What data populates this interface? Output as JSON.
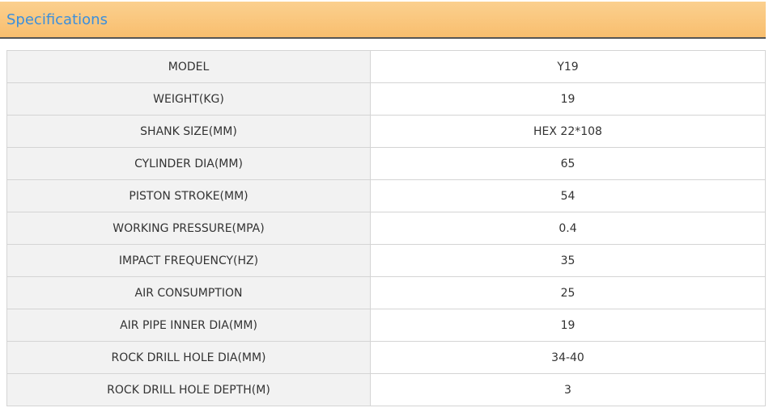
{
  "header": {
    "title": "Specifications"
  },
  "table": {
    "rows": [
      [
        "MODEL",
        "Y19"
      ],
      [
        "WEIGHT(KG)",
        "19"
      ],
      [
        "SHANK SIZE(MM)",
        "HEX 22*108"
      ],
      [
        "CYLINDER DIA(MM)",
        "65"
      ],
      [
        "PISTON STROKE(MM)",
        "54"
      ],
      [
        "WORKING PRESSURE(MPA)",
        "0.4"
      ],
      [
        "IMPACT FREQUENCY(HZ)",
        "35"
      ],
      [
        "AIR CONSUMPTION",
        "25"
      ],
      [
        "AIR PIPE INNER DIA(MM)",
        "19"
      ],
      [
        "ROCK DRILL HOLE DIA(MM)",
        "34-40"
      ],
      [
        "ROCK DRILL HOLE DEPTH(M)",
        "3"
      ]
    ]
  }
}
